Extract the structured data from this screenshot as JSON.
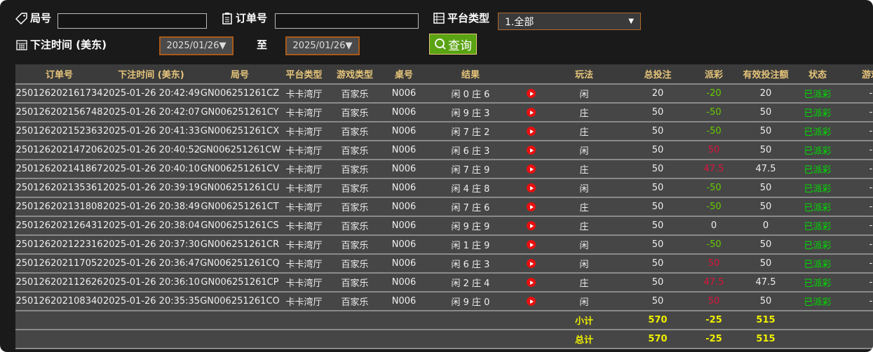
{
  "filters": {
    "round_label": "局号",
    "round_value": "",
    "order_label": "订单号",
    "order_value": "",
    "platform_label": "平台类型",
    "platform_value": "1.全部",
    "time_label": "下注时间 (美东)",
    "date_from": "2025/01/26",
    "to_label": "至",
    "date_to": "2025/01/26",
    "search_label": "查询"
  },
  "columns": [
    "订单号",
    "下注时间 (美东)",
    "局号",
    "平台类型",
    "游戏类型",
    "桌号",
    "结果",
    "",
    "玩法",
    "总投注",
    "派彩",
    "有效投注额",
    "状态",
    "游戏"
  ],
  "rows": [
    {
      "order": "250126202161734",
      "time": "2025-01-26 20:42:49",
      "round": "GN006251261CZ",
      "platform": "卡卡湾厅",
      "game": "百家乐",
      "table": "N006",
      "result": "闲 0 庄 6",
      "bet": "闲",
      "total": "20",
      "payout": "-20",
      "payout_type": "neg",
      "valid": "20",
      "status": "已派彩",
      "extra": "-"
    },
    {
      "order": "250126202156748",
      "time": "2025-01-26 20:42:07",
      "round": "GN006251261CY",
      "platform": "卡卡湾厅",
      "game": "百家乐",
      "table": "N006",
      "result": "闲 9 庄 3",
      "bet": "庄",
      "total": "50",
      "payout": "-50",
      "payout_type": "neg",
      "valid": "50",
      "status": "已派彩",
      "extra": "-"
    },
    {
      "order": "250126202152363",
      "time": "2025-01-26 20:41:33",
      "round": "GN006251261CX",
      "platform": "卡卡湾厅",
      "game": "百家乐",
      "table": "N006",
      "result": "闲 7 庄 2",
      "bet": "庄",
      "total": "50",
      "payout": "-50",
      "payout_type": "neg",
      "valid": "50",
      "status": "已派彩",
      "extra": "-"
    },
    {
      "order": "250126202147206",
      "time": "2025-01-26 20:40:52",
      "round": "GN006251261CW",
      "platform": "卡卡湾厅",
      "game": "百家乐",
      "table": "N006",
      "result": "闲 6 庄 3",
      "bet": "闲",
      "total": "50",
      "payout": "50",
      "payout_type": "red",
      "valid": "50",
      "status": "已派彩",
      "extra": "-"
    },
    {
      "order": "250126202141867",
      "time": "2025-01-26 20:40:10",
      "round": "GN006251261CV",
      "platform": "卡卡湾厅",
      "game": "百家乐",
      "table": "N006",
      "result": "闲 7 庄 9",
      "bet": "庄",
      "total": "50",
      "payout": "47.5",
      "payout_type": "red",
      "valid": "47.5",
      "status": "已派彩",
      "extra": "-"
    },
    {
      "order": "250126202135361",
      "time": "2025-01-26 20:39:19",
      "round": "GN006251261CU",
      "platform": "卡卡湾厅",
      "game": "百家乐",
      "table": "N006",
      "result": "闲 4 庄 8",
      "bet": "闲",
      "total": "50",
      "payout": "-50",
      "payout_type": "neg",
      "valid": "50",
      "status": "已派彩",
      "extra": "-"
    },
    {
      "order": "250126202131808",
      "time": "2025-01-26 20:38:49",
      "round": "GN006251261CT",
      "platform": "卡卡湾厅",
      "game": "百家乐",
      "table": "N006",
      "result": "闲 7 庄 6",
      "bet": "庄",
      "total": "50",
      "payout": "-50",
      "payout_type": "neg",
      "valid": "50",
      "status": "已派彩",
      "extra": "-"
    },
    {
      "order": "250126202126431",
      "time": "2025-01-26 20:38:04",
      "round": "GN006251261CS",
      "platform": "卡卡湾厅",
      "game": "百家乐",
      "table": "N006",
      "result": "闲 9 庄 9",
      "bet": "庄",
      "total": "50",
      "payout": "0",
      "payout_type": "zero",
      "valid": "0",
      "status": "已派彩",
      "extra": "-"
    },
    {
      "order": "250126202122316",
      "time": "2025-01-26 20:37:30",
      "round": "GN006251261CR",
      "platform": "卡卡湾厅",
      "game": "百家乐",
      "table": "N006",
      "result": "闲 1 庄 9",
      "bet": "闲",
      "total": "50",
      "payout": "-50",
      "payout_type": "neg",
      "valid": "50",
      "status": "已派彩",
      "extra": "-"
    },
    {
      "order": "250126202117052",
      "time": "2025-01-26 20:36:47",
      "round": "GN006251261CQ",
      "platform": "卡卡湾厅",
      "game": "百家乐",
      "table": "N006",
      "result": "闲 6 庄 3",
      "bet": "闲",
      "total": "50",
      "payout": "50",
      "payout_type": "red",
      "valid": "50",
      "status": "已派彩",
      "extra": "-"
    },
    {
      "order": "250126202112626",
      "time": "2025-01-26 20:36:10",
      "round": "GN006251261CP",
      "platform": "卡卡湾厅",
      "game": "百家乐",
      "table": "N006",
      "result": "闲 2 庄 4",
      "bet": "庄",
      "total": "50",
      "payout": "47.5",
      "payout_type": "red",
      "valid": "47.5",
      "status": "已派彩",
      "extra": "-"
    },
    {
      "order": "250126202108340",
      "time": "2025-01-26 20:35:35",
      "round": "GN006251261CO",
      "platform": "卡卡湾厅",
      "game": "百家乐",
      "table": "N006",
      "result": "闲 9 庄 0",
      "bet": "闲",
      "total": "50",
      "payout": "50",
      "payout_type": "red",
      "valid": "50",
      "status": "已派彩",
      "extra": "-"
    }
  ],
  "subtotal": {
    "label": "小计",
    "total": "570",
    "payout": "-25",
    "valid": "515"
  },
  "grand_total": {
    "label": "总计",
    "total": "570",
    "payout": "-25",
    "valid": "515"
  },
  "colors": {
    "header_text": "#e6c57a",
    "negative": "#66cc00",
    "positive": "#dc143c",
    "status": "#00dd00",
    "totals": "#f0f000",
    "button": "#5aa312"
  }
}
